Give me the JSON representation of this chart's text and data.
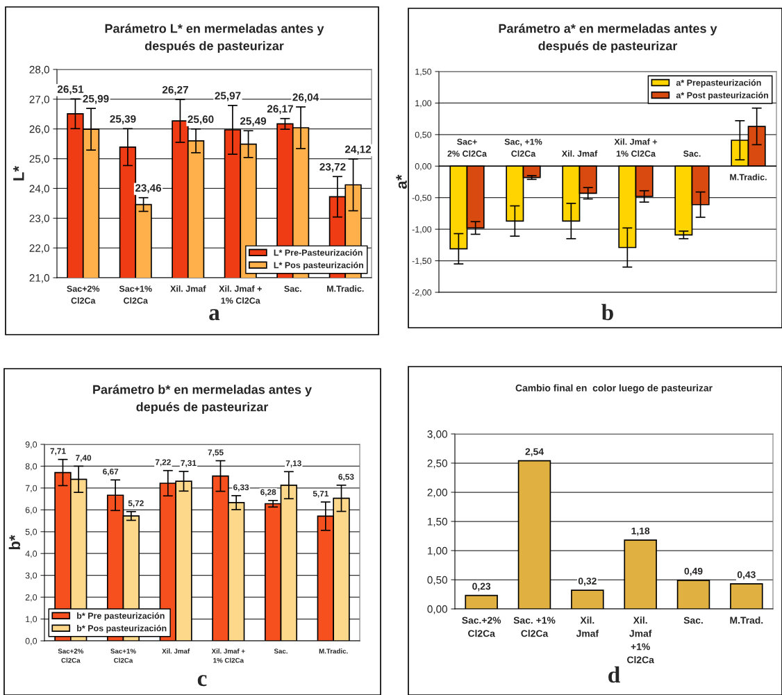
{
  "chart_data": [
    {
      "type": "bar",
      "title": "Parámetro L* en mermeladas antes y\ndespués de pasteurizar",
      "ylabel": "L*",
      "categories": [
        "Sac+2%\nCl2Ca",
        "Sac+1%\nCl2Ca",
        "Xil. Jmaf",
        "Xil. Jmaf +\n1% Cl2Ca",
        "Sac.",
        "M.Tradic."
      ],
      "series": [
        {
          "name": "L* Pre-Pasteurización",
          "color": "#f03c14",
          "values": [
            26.51,
            25.39,
            26.27,
            25.97,
            26.17,
            23.72
          ],
          "errors": [
            0.5,
            0.62,
            0.72,
            0.82,
            0.18,
            0.68
          ],
          "value_labels": [
            "26,51",
            "25,39",
            "26,27",
            "25,97",
            "26,17",
            "23,72"
          ]
        },
        {
          "name": "L* Pos pasteurización",
          "color": "#ffb04a",
          "values": [
            25.99,
            23.46,
            25.6,
            25.49,
            26.04,
            24.12
          ],
          "errors": [
            0.7,
            0.23,
            0.4,
            0.45,
            0.7,
            0.87
          ],
          "value_labels": [
            "25,99",
            "23,46",
            "25,60",
            "25,49",
            "26,04",
            "24,12"
          ]
        }
      ],
      "ylim": [
        21,
        28
      ],
      "yticks": [
        {
          "value": 21,
          "label": "21,0"
        },
        {
          "value": 22,
          "label": "22,0"
        },
        {
          "value": 23,
          "label": "23,0"
        },
        {
          "value": 24,
          "label": "24,0"
        },
        {
          "value": 25,
          "label": "25,0"
        },
        {
          "value": 26,
          "label": "26,0"
        },
        {
          "value": 27,
          "label": "27,0"
        },
        {
          "value": 28,
          "label": "28,0"
        }
      ],
      "grid": "y",
      "legend": "bottom right",
      "annotations": [
        "a"
      ]
    },
    {
      "type": "bar",
      "title": "Parámetro a* en mermeladas antes y\ndespués de pasteurizar",
      "ylabel": "a*",
      "categories": [
        "Sac+\n2% Cl2Ca",
        "Sac, +1%\nCl2Ca",
        "Xil. Jmaf",
        "Xil. Jmaf +\n1% Cl2Ca",
        "Sac.",
        "M.Tradic."
      ],
      "series": [
        {
          "name": "a* Prepasteurización",
          "color": "#ffd400",
          "values": [
            -1.31,
            -0.87,
            -0.87,
            -1.29,
            -1.09,
            0.41
          ],
          "errors": [
            0.24,
            0.24,
            0.28,
            0.31,
            0.06,
            0.31
          ]
        },
        {
          "name": "a* Post pasteurización",
          "color": "#d84a10",
          "values": [
            -0.98,
            -0.18,
            -0.43,
            -0.48,
            -0.61,
            0.63
          ],
          "errors": [
            0.1,
            0.03,
            0.09,
            0.09,
            0.2,
            0.29
          ]
        }
      ],
      "ylim": [
        -2,
        1.5
      ],
      "yticks": [
        {
          "value": -2,
          "label": "-2,00"
        },
        {
          "value": -1.5,
          "label": "-1,50"
        },
        {
          "value": -1,
          "label": "-1,00"
        },
        {
          "value": -0.5,
          "label": "-0,50"
        },
        {
          "value": 0,
          "label": "0,00"
        },
        {
          "value": 0.5,
          "label": "0,50"
        },
        {
          "value": 1,
          "label": "1,00"
        },
        {
          "value": 1.5,
          "label": "1,50"
        }
      ],
      "grid": "y",
      "legend": "top right",
      "annotations": [
        "b"
      ]
    },
    {
      "type": "bar",
      "title": "Parámetro b* en mermeladas antes y\ndepués de pasteurizar",
      "ylabel": "b*",
      "categories": [
        "Sac+2%\nCl2Ca",
        "Sac+1%\nCl2Ca",
        "Xil. Jmaf",
        "Xil. Jmaf +\n1% Cl2Ca",
        "Sac.",
        "M.Tradic."
      ],
      "series": [
        {
          "name": "b* Pre pasteurización",
          "color": "#f5501e",
          "values": [
            7.71,
            6.67,
            7.22,
            7.55,
            6.28,
            5.71
          ],
          "errors": [
            0.6,
            0.7,
            0.58,
            0.7,
            0.15,
            0.65
          ],
          "value_labels": [
            "7,71",
            "6,67",
            "7,22",
            "7,55",
            "6,28",
            "5,71"
          ]
        },
        {
          "name": "b* Pos pasteurización",
          "color": "#fdd88a",
          "values": [
            7.4,
            5.72,
            7.31,
            6.33,
            7.13,
            6.53
          ],
          "errors": [
            0.6,
            0.2,
            0.45,
            0.32,
            0.62,
            0.6
          ],
          "value_labels": [
            "7,40",
            "5,72",
            "7,31",
            "6,33",
            "7,13",
            "6,53"
          ]
        }
      ],
      "ylim": [
        0,
        9
      ],
      "yticks": [
        {
          "value": 0,
          "label": "0,0"
        },
        {
          "value": 1,
          "label": "1,0"
        },
        {
          "value": 2,
          "label": "2,0"
        },
        {
          "value": 3,
          "label": "3,0"
        },
        {
          "value": 4,
          "label": "4,0"
        },
        {
          "value": 5,
          "label": "5,0"
        },
        {
          "value": 6,
          "label": "6,0"
        },
        {
          "value": 7,
          "label": "7,0"
        },
        {
          "value": 8,
          "label": "8,0"
        },
        {
          "value": 9,
          "label": "9,0"
        }
      ],
      "grid": "y",
      "legend": "bottom left",
      "annotations": [
        "c"
      ]
    },
    {
      "type": "bar",
      "title": "Cambio final en  color luego de pasteurizar",
      "categories": [
        "Sac.+2%\nCl2Ca",
        "Sac. +1%\nCl2Ca",
        "Xil.\nJmaf",
        "Xil.\nJmaf\n+1%\nCl2Ca",
        "Sac.",
        "M.Trad."
      ],
      "series": [
        {
          "color": "#e0b040",
          "values": [
            0.23,
            2.54,
            0.32,
            1.18,
            0.49,
            0.43
          ],
          "value_labels": [
            "0,23",
            "2,54",
            "0,32",
            "1,18",
            "0,49",
            "0,43"
          ]
        }
      ],
      "ylim": [
        0,
        3
      ],
      "yticks": [
        {
          "value": 0,
          "label": "0,00"
        },
        {
          "value": 0.5,
          "label": "0,50"
        },
        {
          "value": 1,
          "label": "1,00"
        },
        {
          "value": 1.5,
          "label": "1,50"
        },
        {
          "value": 2,
          "label": "2,00"
        },
        {
          "value": 2.5,
          "label": "2,50"
        },
        {
          "value": 3,
          "label": "3,00"
        }
      ],
      "grid": "y",
      "annotations": [
        "d"
      ]
    }
  ]
}
